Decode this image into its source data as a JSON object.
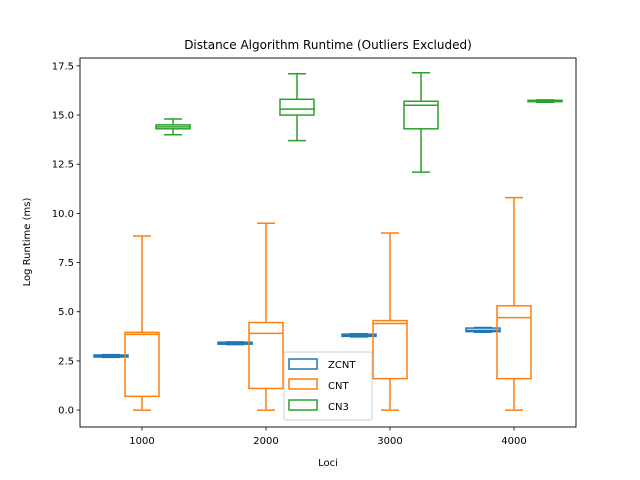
{
  "chart_data": {
    "type": "boxplot",
    "title": "Distance Algorithm Runtime (Outliers Excluded)",
    "xlabel": "Loci",
    "ylabel": "Log Runtime (ms)",
    "categories": [
      "1000",
      "2000",
      "3000",
      "4000"
    ],
    "ylim": [
      -0.86,
      17.9
    ],
    "yticks": [
      "0.0",
      "2.5",
      "5.0",
      "7.5",
      "10.0",
      "12.5",
      "15.0",
      "17.5"
    ],
    "grid": false,
    "legend_position": "lower center",
    "series": [
      {
        "name": "ZCNT",
        "color": "#1f77b4",
        "boxes": [
          {
            "whislo": 2.68,
            "q1": 2.7,
            "med": 2.75,
            "q3": 2.8,
            "whishi": 2.82
          },
          {
            "whislo": 3.33,
            "q1": 3.35,
            "med": 3.4,
            "q3": 3.45,
            "whishi": 3.47
          },
          {
            "whislo": 3.72,
            "q1": 3.75,
            "med": 3.8,
            "q3": 3.86,
            "whishi": 3.88
          },
          {
            "whislo": 3.96,
            "q1": 3.99,
            "med": 4.05,
            "q3": 4.17,
            "whishi": 4.2
          }
        ]
      },
      {
        "name": "CNT",
        "color": "#ff7f0e",
        "boxes": [
          {
            "whislo": 0.0,
            "q1": 0.7,
            "med": 3.85,
            "q3": 3.95,
            "whishi": 8.85
          },
          {
            "whislo": 0.0,
            "q1": 1.1,
            "med": 3.9,
            "q3": 4.45,
            "whishi": 9.5
          },
          {
            "whislo": 0.0,
            "q1": 1.6,
            "med": 4.4,
            "q3": 4.55,
            "whishi": 9.0
          },
          {
            "whislo": 0.0,
            "q1": 1.6,
            "med": 4.7,
            "q3": 5.3,
            "whishi": 10.8
          }
        ]
      },
      {
        "name": "CN3",
        "color": "#2ca02c",
        "boxes": [
          {
            "whislo": 14.0,
            "q1": 14.3,
            "med": 14.4,
            "q3": 14.5,
            "whishi": 14.8
          },
          {
            "whislo": 13.7,
            "q1": 15.0,
            "med": 15.3,
            "q3": 15.8,
            "whishi": 17.1
          },
          {
            "whislo": 12.1,
            "q1": 14.3,
            "med": 15.5,
            "q3": 15.7,
            "whishi": 17.15
          },
          {
            "whislo": 15.65,
            "q1": 15.68,
            "med": 15.72,
            "q3": 15.75,
            "whishi": 15.77
          }
        ]
      }
    ]
  }
}
